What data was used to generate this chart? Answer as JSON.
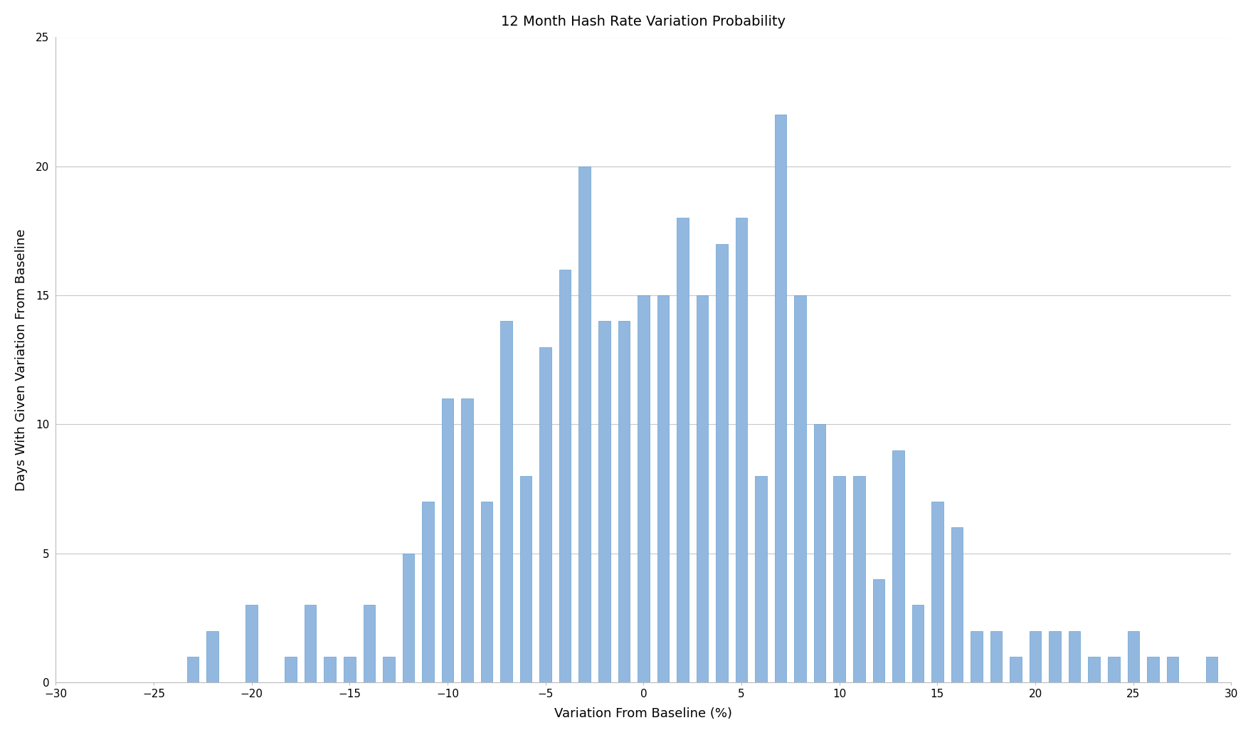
{
  "title": "12 Month Hash Rate Variation Probability",
  "xlabel": "Variation From Baseline (%)",
  "ylabel": "Days With Given Variation From Baseline",
  "xlim": [
    -30,
    30
  ],
  "ylim": [
    0,
    25
  ],
  "yticks": [
    0,
    5,
    10,
    15,
    20,
    25
  ],
  "xticks": [
    -30,
    -25,
    -20,
    -15,
    -10,
    -5,
    0,
    5,
    10,
    15,
    20,
    25,
    30
  ],
  "bar_color": "#92B8E0",
  "bar_edge_color": "#6A9FCC",
  "background_color": "#FFFFFF",
  "grid_color": "#C8C8C8",
  "bars": [
    {
      "x": -23,
      "height": 1
    },
    {
      "x": -22,
      "height": 2
    },
    {
      "x": -20,
      "height": 3
    },
    {
      "x": -18,
      "height": 1
    },
    {
      "x": -17,
      "height": 3
    },
    {
      "x": -16,
      "height": 1
    },
    {
      "x": -15,
      "height": 1
    },
    {
      "x": -14,
      "height": 3
    },
    {
      "x": -13,
      "height": 1
    },
    {
      "x": -12,
      "height": 5
    },
    {
      "x": -11,
      "height": 7
    },
    {
      "x": -10,
      "height": 11
    },
    {
      "x": -9,
      "height": 11
    },
    {
      "x": -8,
      "height": 7
    },
    {
      "x": -7,
      "height": 14
    },
    {
      "x": -6,
      "height": 8
    },
    {
      "x": -5,
      "height": 13
    },
    {
      "x": -4,
      "height": 16
    },
    {
      "x": -3,
      "height": 20
    },
    {
      "x": -2,
      "height": 14
    },
    {
      "x": -1,
      "height": 14
    },
    {
      "x": 0,
      "height": 15
    },
    {
      "x": 1,
      "height": 15
    },
    {
      "x": 2,
      "height": 18
    },
    {
      "x": 3,
      "height": 15
    },
    {
      "x": 4,
      "height": 17
    },
    {
      "x": 5,
      "height": 18
    },
    {
      "x": 6,
      "height": 8
    },
    {
      "x": 7,
      "height": 22
    },
    {
      "x": 8,
      "height": 15
    },
    {
      "x": 9,
      "height": 10
    },
    {
      "x": 10,
      "height": 8
    },
    {
      "x": 11,
      "height": 8
    },
    {
      "x": 12,
      "height": 4
    },
    {
      "x": 13,
      "height": 9
    },
    {
      "x": 14,
      "height": 3
    },
    {
      "x": 15,
      "height": 7
    },
    {
      "x": 16,
      "height": 6
    },
    {
      "x": 17,
      "height": 2
    },
    {
      "x": 18,
      "height": 2
    },
    {
      "x": 19,
      "height": 1
    },
    {
      "x": 20,
      "height": 2
    },
    {
      "x": 21,
      "height": 2
    },
    {
      "x": 22,
      "height": 2
    },
    {
      "x": 23,
      "height": 1
    },
    {
      "x": 24,
      "height": 1
    },
    {
      "x": 25,
      "height": 2
    },
    {
      "x": 26,
      "height": 1
    },
    {
      "x": 27,
      "height": 1
    },
    {
      "x": 29,
      "height": 1
    }
  ]
}
